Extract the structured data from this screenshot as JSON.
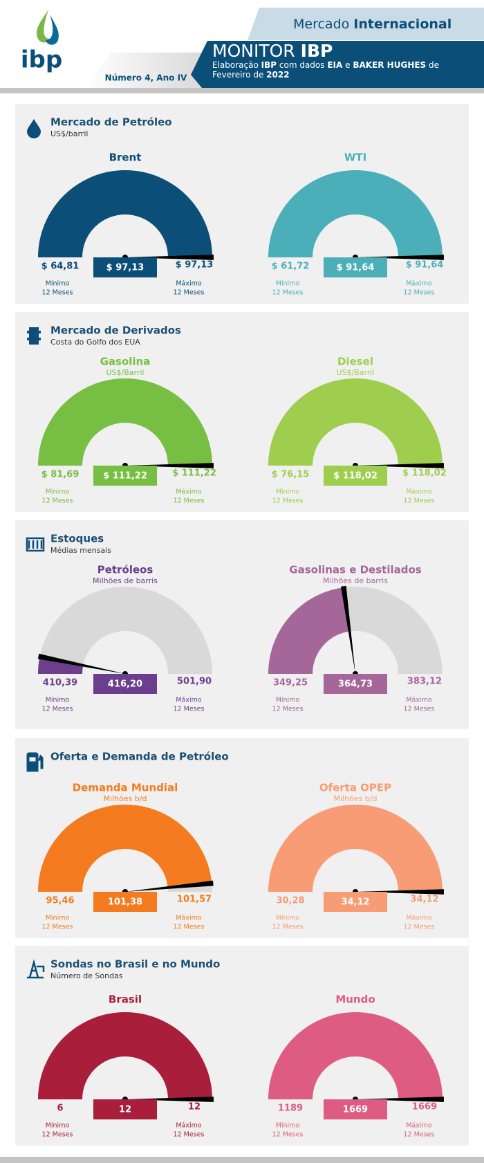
{
  "header": {
    "logo": "ibp",
    "section": "Mercado",
    "section_bold": "Internacional",
    "title": "MONITOR",
    "title_bold": "IBP",
    "subtitle_runs": [
      "Elaboração",
      "IBP",
      "com dados",
      "EIA",
      "e",
      "BAKER HUGHES",
      "de Fevereiro de",
      "2022"
    ],
    "issue": "Número 4, Ano IV"
  },
  "sections": [
    {
      "title": "Mercado de Petróleo",
      "subtitle": "US$/barril",
      "gauges": [
        {
          "title": "Brent",
          "color": "#0b4f79",
          "min": 64.81,
          "min_label": "$ 64,81",
          "value": 97.13,
          "value_label": "$ 97,13",
          "max": 97.13,
          "max_label": "$ 97,13",
          "min_caption": "Mínimo",
          "max_caption": "Máximo",
          "period": "12 Meses"
        },
        {
          "title": "WTI",
          "color": "#4bafb9",
          "min": 61.72,
          "min_label": "$ 61,72",
          "value": 91.64,
          "value_label": "$ 91,64",
          "max": 91.64,
          "max_label": "$ 91,64",
          "min_caption": "Mínimo",
          "max_caption": "Máximo",
          "period": "12 Meses"
        }
      ]
    },
    {
      "title": "Mercado de Derivados",
      "subtitle": "Costa do Golfo dos EUA",
      "gauges": [
        {
          "title": "Gasolina",
          "unit": "US$/Barril",
          "color": "#76bf43",
          "min": 81.69,
          "min_label": "$ 81,69",
          "value": 111.22,
          "value_label": "$ 111,22",
          "max": 111.22,
          "max_label": "$ 111,22",
          "min_caption": "Mínimo",
          "max_caption": "Máximo",
          "period": "12 Meses"
        },
        {
          "title": "Diesel",
          "unit": "US$/Barril",
          "color": "#9fce4e",
          "min": 76.15,
          "min_label": "$ 76,15",
          "value": 118.02,
          "value_label": "$ 118,02",
          "max": 118.02,
          "max_label": "$ 118,02",
          "min_caption": "Mínimo",
          "max_caption": "Máximo",
          "period": "12 Meses"
        }
      ]
    },
    {
      "title": "Estoques",
      "subtitle": "Médias mensais",
      "gauges": [
        {
          "title": "Petróleos",
          "unit": "Milhões de barris",
          "color": "#6c3f8e",
          "min": 410.39,
          "min_label": "410,39",
          "value": 416.2,
          "value_label": "416,20",
          "max": 501.9,
          "max_label": "501,90",
          "min_caption": "Mínimo",
          "max_caption": "Máximo",
          "period": "12 Meses"
        },
        {
          "title": "Gasolinas e Destilados",
          "unit": "Milhões de barris",
          "color": "#a5679a",
          "min": 349.25,
          "min_label": "349,25",
          "value": 364.73,
          "value_label": "364,73",
          "max": 383.12,
          "max_label": "383,12",
          "min_caption": "Mínimo",
          "max_caption": "Máximo",
          "period": "12 Meses"
        }
      ]
    },
    {
      "title": "Oferta e Demanda de Petróleo",
      "gauges": [
        {
          "title": "Demanda Mundial",
          "unit": "Milhões b/d",
          "color": "#f47b20",
          "min": 95.46,
          "min_label": "95,46",
          "value": 101.38,
          "value_label": "101,38",
          "max": 101.57,
          "max_label": "101,57",
          "min_caption": "Mínimo",
          "max_caption": "Máximo",
          "period": "12 Meses"
        },
        {
          "title": "Oferta OPEP",
          "unit": "Milhões b/d",
          "color": "#f79c74",
          "min": 30.28,
          "min_label": "30,28",
          "value": 34.12,
          "value_label": "34,12",
          "max": 34.12,
          "max_label": "34,12",
          "min_caption": "Mínimo",
          "max_caption": "Máximo",
          "period": "12 Meses"
        }
      ]
    },
    {
      "title": "Sondas no Brasil e no Mundo",
      "subtitle": "Número de Sondas",
      "gauges": [
        {
          "title": "Brasil",
          "color": "#a91e3b",
          "min": 6,
          "value": 12,
          "max": 12,
          "min_caption": "Mínimo",
          "max_caption": "Máximo",
          "period": "12 Meses"
        },
        {
          "title": "Mundo",
          "color": "#de5b82",
          "min": 1189,
          "value": 1669,
          "max": 1669,
          "min_caption": "Mínimo",
          "max_caption": "Máximo",
          "period": "12 Meses"
        }
      ]
    }
  ]
}
